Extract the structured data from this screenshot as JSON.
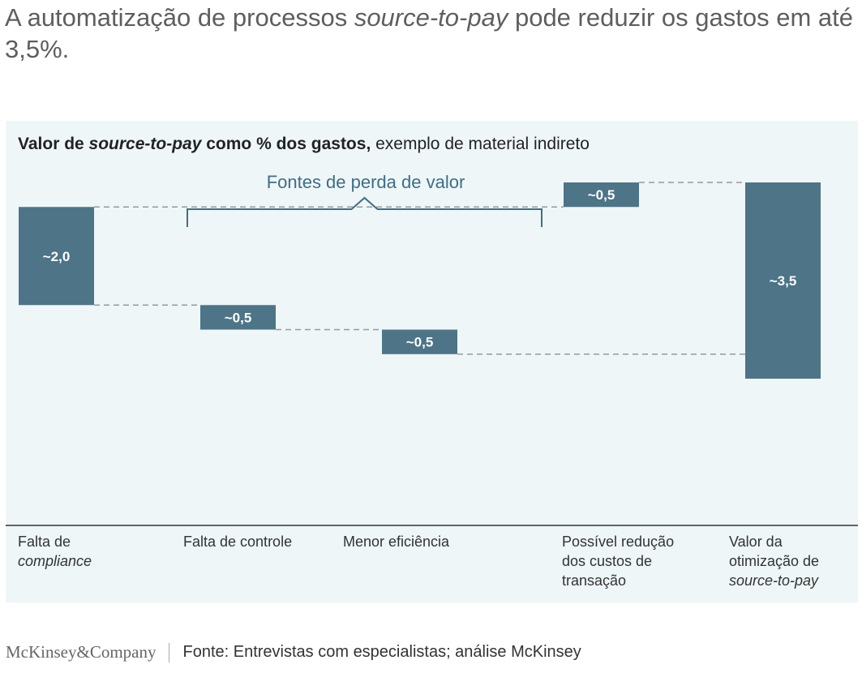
{
  "headline": {
    "part1": "A automatização de processos ",
    "italic": "source-to-pay",
    "part2": " pode reduzir os gastos em até 3,5%."
  },
  "subtitle": {
    "bold1": "Valor de ",
    "bold_italic": "source-to-pay",
    "bold2": " como % dos gastos,",
    "rest": " exemplo de material indireto"
  },
  "brace_label": "Fontes de perda de valor",
  "chart_data": {
    "type": "waterfall",
    "unit": "% dos gastos",
    "bars": [
      {
        "value_label": "~2,0",
        "start": 0,
        "end": 2.0,
        "category": {
          "text": "Falta de",
          "italic": "compliance"
        }
      },
      {
        "value_label": "~0,5",
        "start": 2.0,
        "end": 2.5,
        "category": {
          "text": "Falta de controle",
          "italic": ""
        }
      },
      {
        "value_label": "~0,5",
        "start": 2.5,
        "end": 3.0,
        "category": {
          "text": "Menor eficiência",
          "italic": ""
        }
      },
      {
        "value_label": "~0,5",
        "start": 3.0,
        "end": 3.5,
        "category": {
          "text": "Possível redução dos custos de transação",
          "italic": ""
        }
      },
      {
        "value_label": "~3,5",
        "start": 0,
        "end": 3.5,
        "category": {
          "text": "Valor da otimização de",
          "italic": "source-to-pay"
        }
      }
    ],
    "colors": {
      "bar": "#4d7487",
      "connector": "#999999",
      "brace": "#3d6f84",
      "panel": "#eef6f8"
    }
  },
  "footer": {
    "logo": "McKinsey&Company",
    "source": "Fonte: Entrevistas com especialistas; análise McKinsey"
  }
}
